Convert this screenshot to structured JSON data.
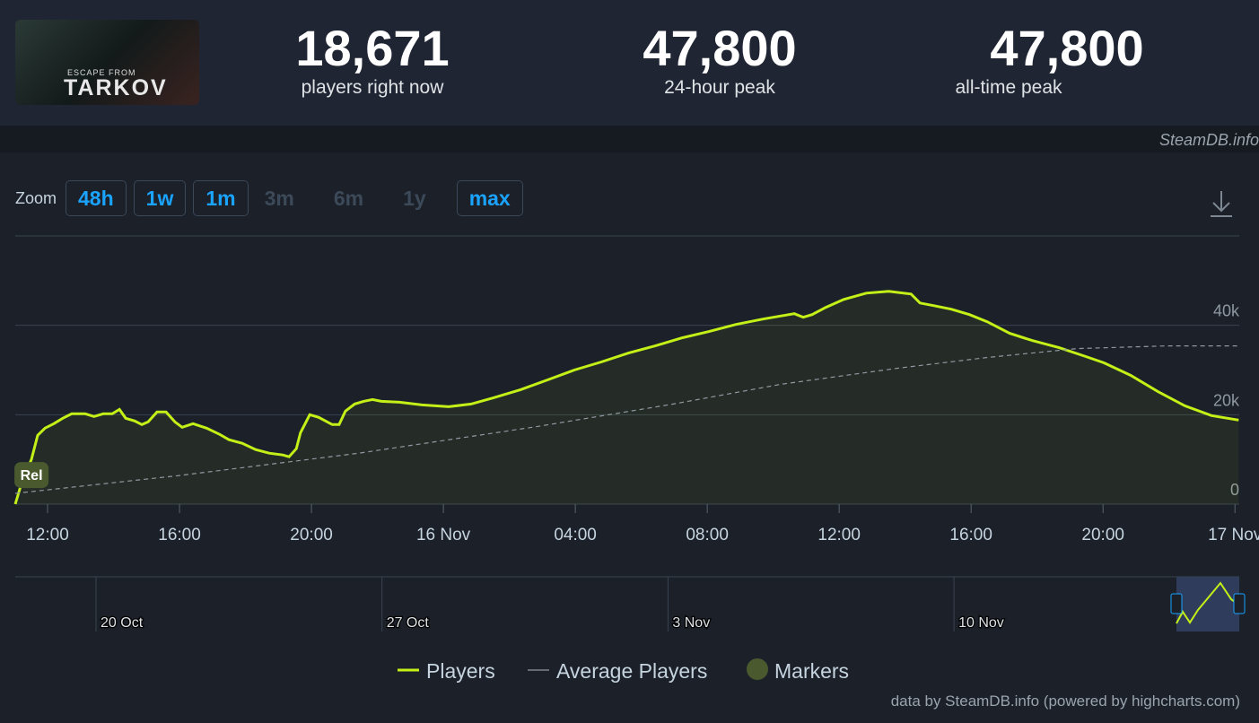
{
  "header": {
    "logo": {
      "line1": "ESCAPE FROM",
      "line2": "TARKOV"
    },
    "stats": [
      {
        "value": "18,671",
        "label": "players right now"
      },
      {
        "value": "47,800",
        "label": "24-hour peak"
      },
      {
        "value": "47,800",
        "label": "all-time peak"
      }
    ]
  },
  "source": "SteamDB.info",
  "zoom": {
    "label": "Zoom",
    "buttons": [
      {
        "label": "48h",
        "enabled": true
      },
      {
        "label": "1w",
        "enabled": true
      },
      {
        "label": "1m",
        "enabled": true
      },
      {
        "label": "3m",
        "enabled": false
      },
      {
        "label": "6m",
        "enabled": false
      },
      {
        "label": "1y",
        "enabled": false
      },
      {
        "label": "max",
        "enabled": true
      }
    ]
  },
  "chart_data": {
    "type": "line",
    "xlim": [
      11.02,
      48.13
    ],
    "xticks": [
      {
        "value": 12,
        "label": "12:00"
      },
      {
        "value": 16,
        "label": "16:00"
      },
      {
        "value": 20,
        "label": "20:00"
      },
      {
        "value": 24,
        "label": "16 Nov"
      },
      {
        "value": 28,
        "label": "04:00"
      },
      {
        "value": 32,
        "label": "08:00"
      },
      {
        "value": 36,
        "label": "12:00"
      },
      {
        "value": 40,
        "label": "16:00"
      },
      {
        "value": 44,
        "label": "20:00"
      },
      {
        "value": 48,
        "label": "17 Nov"
      }
    ],
    "ylim": [
      0,
      60000
    ],
    "yticks": [
      0,
      {
        "value": 20000,
        "label": "20k"
      },
      {
        "value": 40000,
        "label": "40k"
      }
    ],
    "grid": true,
    "series": [
      {
        "name": "Players",
        "color": "#c4f018",
        "x": [
          11.02,
          11.24,
          11.51,
          11.7,
          11.92,
          12.19,
          12.46,
          12.73,
          13.14,
          13.41,
          13.69,
          13.96,
          14.18,
          14.37,
          14.64,
          14.86,
          15.05,
          15.32,
          15.59,
          15.86,
          16.08,
          16.41,
          16.82,
          17.22,
          17.5,
          17.9,
          18.31,
          18.72,
          19.13,
          19.32,
          19.54,
          19.67,
          19.95,
          20.22,
          20.63,
          20.84,
          21.03,
          21.31,
          21.58,
          21.85,
          22.12,
          22.67,
          23.35,
          24.16,
          24.84,
          25.52,
          26.34,
          27.16,
          27.97,
          28.79,
          29.61,
          30.42,
          31.24,
          32.05,
          32.87,
          33.69,
          34.64,
          34.91,
          35.18,
          35.59,
          36.14,
          36.82,
          37.5,
          38.18,
          38.45,
          38.86,
          39.4,
          39.95,
          40.49,
          41.17,
          41.85,
          42.67,
          43.48,
          44.03,
          44.84,
          45.66,
          46.48,
          47.29,
          48.11
        ],
        "values": [
          0,
          5400,
          10000,
          15400,
          17000,
          18000,
          19200,
          20200,
          20200,
          19600,
          20200,
          20200,
          21200,
          19200,
          18600,
          17800,
          18400,
          20600,
          20600,
          18400,
          17200,
          18000,
          17000,
          15600,
          14400,
          13600,
          12200,
          11400,
          11000,
          10600,
          12400,
          16000,
          20000,
          19400,
          17800,
          17800,
          20800,
          22400,
          23000,
          23400,
          23000,
          22800,
          22200,
          21800,
          22400,
          23800,
          25600,
          27800,
          30000,
          31800,
          33800,
          35400,
          37200,
          38600,
          40200,
          41400,
          42600,
          41800,
          42400,
          44000,
          45800,
          47200,
          47600,
          47000,
          45000,
          44400,
          43600,
          42400,
          40800,
          38200,
          36600,
          35000,
          33000,
          31600,
          28800,
          25200,
          22000,
          19800,
          18800
        ]
      },
      {
        "name": "Average Players",
        "color": "#8f98a0",
        "x": [
          11.02,
          16,
          21.44,
          26.88,
          30.97,
          34.23,
          37.77,
          40.49,
          43.21,
          45.93,
          48.11
        ],
        "values": [
          2400,
          6400,
          11400,
          17400,
          22400,
          26800,
          30400,
          32800,
          34800,
          35400,
          35400
        ]
      }
    ],
    "markers": {
      "name": "Markers",
      "color": "#4b5a2e",
      "points": [
        {
          "x": 11.24,
          "y": 6600,
          "label": "Rel"
        }
      ]
    }
  },
  "navigator": {
    "labels": [
      "20 Oct",
      "27 Oct",
      "3 Nov",
      "10 Nov"
    ]
  },
  "credit": "data by SteamDB.info (powered by highcharts.com)"
}
